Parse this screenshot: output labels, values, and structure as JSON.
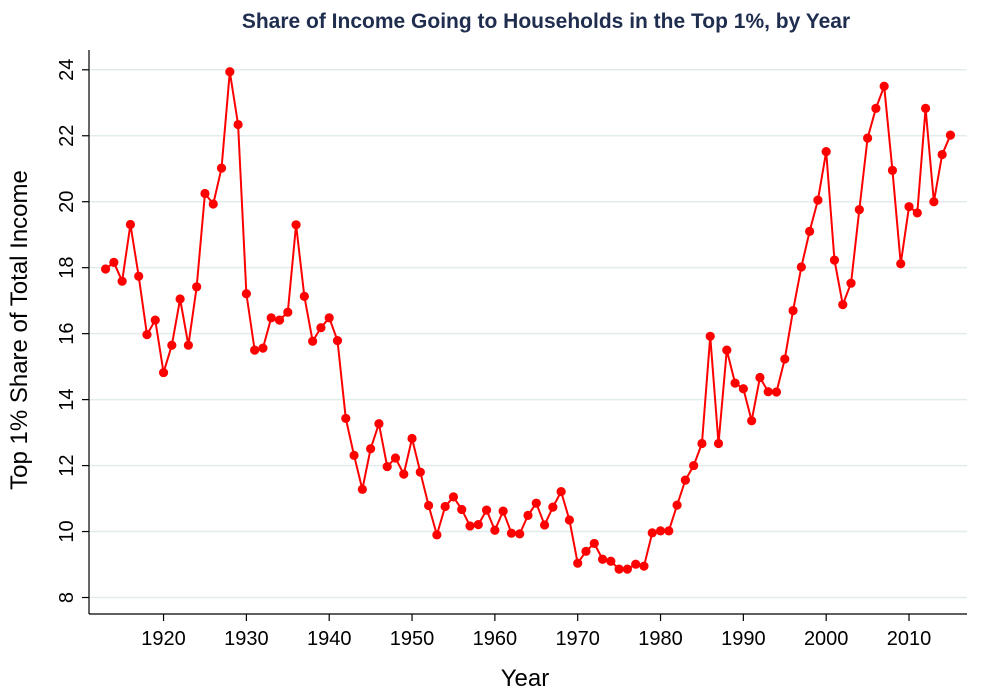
{
  "chart_data": {
    "type": "line",
    "title": "Share of Income Going to Households in the Top 1%, by Year",
    "xlabel": "Year",
    "ylabel": "Top 1% Share of Total Income",
    "xlim": [
      1911,
      2017
    ],
    "ylim": [
      7.5,
      24.6
    ],
    "xticks": [
      1920,
      1930,
      1940,
      1950,
      1960,
      1970,
      1980,
      1990,
      2000,
      2010
    ],
    "yticks": [
      8,
      10,
      12,
      14,
      16,
      18,
      20,
      22,
      24
    ],
    "grid": true,
    "series": [
      {
        "name": "Top 1% share",
        "color": "#ff0000",
        "x": [
          1913,
          1914,
          1915,
          1916,
          1917,
          1918,
          1919,
          1920,
          1921,
          1922,
          1923,
          1924,
          1925,
          1926,
          1927,
          1928,
          1929,
          1930,
          1931,
          1932,
          1933,
          1934,
          1935,
          1936,
          1937,
          1938,
          1939,
          1940,
          1941,
          1942,
          1943,
          1944,
          1945,
          1946,
          1947,
          1948,
          1949,
          1950,
          1951,
          1952,
          1953,
          1954,
          1955,
          1956,
          1957,
          1958,
          1959,
          1960,
          1961,
          1962,
          1963,
          1964,
          1965,
          1966,
          1967,
          1968,
          1969,
          1970,
          1971,
          1972,
          1973,
          1974,
          1975,
          1976,
          1977,
          1978,
          1979,
          1980,
          1981,
          1982,
          1983,
          1984,
          1985,
          1986,
          1987,
          1988,
          1989,
          1990,
          1991,
          1992,
          1993,
          1994,
          1995,
          1996,
          1997,
          1998,
          1999,
          2000,
          2001,
          2002,
          2003,
          2004,
          2005,
          2006,
          2007,
          2008,
          2009,
          2010,
          2011,
          2012,
          2013,
          2014,
          2015
        ],
        "values": [
          17.96,
          18.16,
          17.59,
          19.31,
          17.74,
          15.97,
          16.41,
          14.82,
          15.65,
          17.05,
          15.65,
          17.42,
          20.25,
          19.93,
          21.02,
          23.94,
          22.34,
          17.21,
          15.5,
          15.56,
          16.48,
          16.41,
          16.65,
          19.3,
          17.13,
          15.77,
          16.18,
          16.48,
          15.79,
          13.43,
          12.31,
          11.28,
          12.51,
          13.27,
          11.97,
          12.23,
          11.74,
          12.82,
          11.8,
          10.79,
          9.9,
          10.76,
          11.05,
          10.67,
          10.17,
          10.21,
          10.65,
          10.04,
          10.62,
          9.95,
          9.93,
          10.49,
          10.86,
          10.2,
          10.74,
          11.21,
          10.35,
          9.04,
          9.4,
          9.64,
          9.16,
          9.1,
          8.86,
          8.86,
          9.01,
          8.95,
          9.96,
          10.02,
          10.02,
          10.8,
          11.56,
          12.0,
          12.67,
          15.92,
          12.67,
          15.5,
          14.5,
          14.33,
          13.36,
          14.67,
          14.24,
          14.23,
          15.23,
          16.7,
          18.02,
          19.1,
          20.05,
          21.52,
          18.23,
          16.88,
          17.53,
          19.76,
          21.93,
          22.83,
          23.5,
          20.95,
          18.12,
          19.85,
          19.66,
          22.83,
          20.0,
          21.43,
          22.02
        ]
      }
    ]
  }
}
